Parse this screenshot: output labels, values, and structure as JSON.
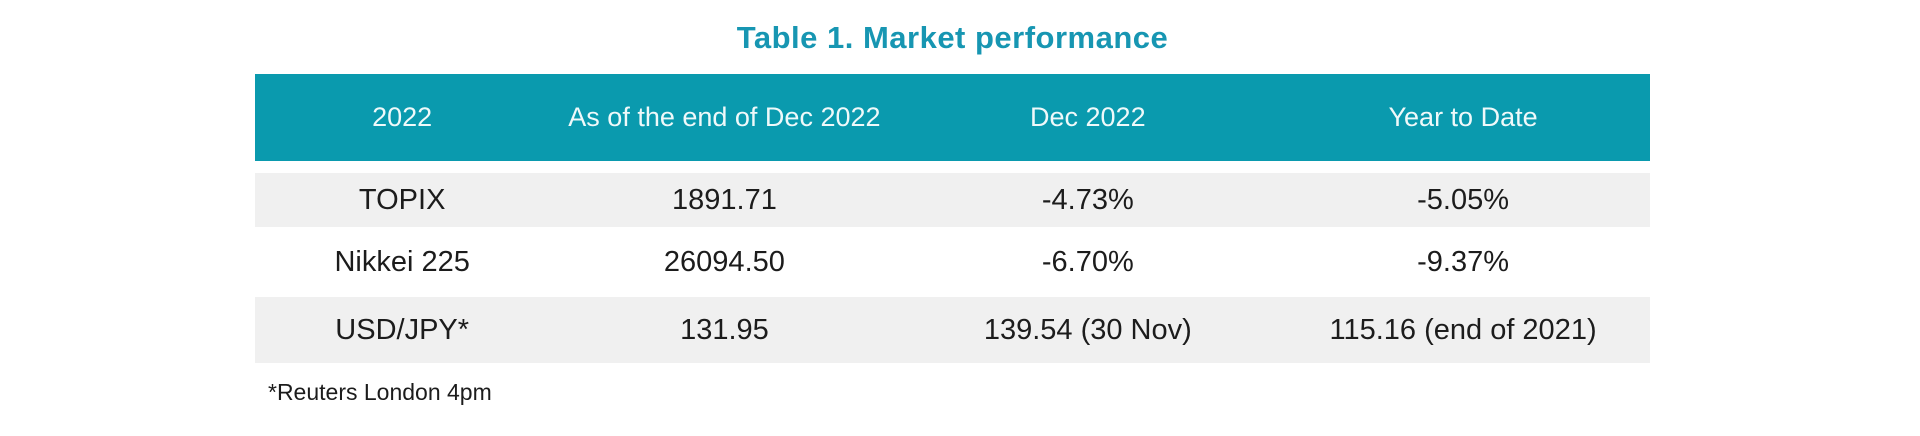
{
  "title": "Table 1. Market performance",
  "footnote": "*Reuters London 4pm",
  "colors": {
    "header_bg": "#0A9AAE",
    "title_text": "#1796B2",
    "alt_row_bg": "#F0F0F0",
    "header_text": "#EFF9FA",
    "body_text": "#1C1C1C"
  },
  "chart_data": {
    "type": "table",
    "title": "Table 1. Market performance",
    "columns": [
      "2022",
      "As of the end of Dec 2022",
      "Dec 2022",
      "Year to Date"
    ],
    "rows": [
      [
        "TOPIX",
        "1891.71",
        "-4.73%",
        "-5.05%"
      ],
      [
        "Nikkei 225",
        "26094.50",
        "-6.70%",
        "-9.37%"
      ],
      [
        "USD/JPY*",
        "131.95",
        "139.54 (30 Nov)",
        "115.16 (end of 2021)"
      ]
    ],
    "footnote": "*Reuters London 4pm",
    "layout": {
      "header_style": "teal-filled",
      "row_striping": "gray-white-gray",
      "alignment": "center"
    }
  }
}
